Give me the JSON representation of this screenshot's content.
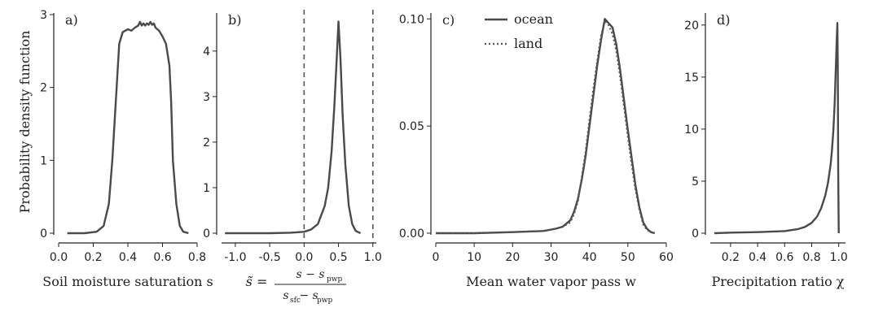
{
  "figure": {
    "ylabel": "Probability density function"
  },
  "chart_data": [
    {
      "type": "line",
      "panel_label": "a)",
      "xlabel": "Soil moisture saturation s",
      "xlim": [
        0.0,
        0.8
      ],
      "ylim": [
        0,
        3
      ],
      "xticks": [
        0.0,
        0.2,
        0.4,
        0.6,
        0.8
      ],
      "xtick_labels": [
        "0.0",
        "0.2",
        "0.4",
        "0.6",
        "0.8"
      ],
      "yticks": [
        0,
        1,
        2,
        3
      ],
      "ytick_labels": [
        "0",
        "1",
        "2",
        "3"
      ],
      "series": [
        {
          "style": "solid",
          "x": [
            0.05,
            0.15,
            0.22,
            0.26,
            0.29,
            0.31,
            0.33,
            0.35,
            0.37,
            0.4,
            0.42,
            0.44,
            0.46,
            0.47,
            0.48,
            0.49,
            0.5,
            0.51,
            0.52,
            0.53,
            0.54,
            0.55,
            0.56,
            0.58,
            0.6,
            0.62,
            0.64,
            0.65,
            0.66,
            0.68,
            0.7,
            0.72,
            0.75
          ],
          "y": [
            0.0,
            0.0,
            0.02,
            0.1,
            0.4,
            1.0,
            1.8,
            2.6,
            2.76,
            2.8,
            2.78,
            2.82,
            2.85,
            2.9,
            2.85,
            2.88,
            2.85,
            2.88,
            2.86,
            2.9,
            2.86,
            2.88,
            2.82,
            2.78,
            2.7,
            2.6,
            2.3,
            1.8,
            1.0,
            0.4,
            0.1,
            0.02,
            0.0
          ]
        }
      ]
    },
    {
      "type": "line",
      "panel_label": "b)",
      "xlabel": "s̃ = (s − s_pwp)/(s_sfc − s_pwp)",
      "xlim": [
        -1.2,
        1.05
      ],
      "ylim": [
        0,
        4.8
      ],
      "xticks": [
        -1.0,
        -0.5,
        0.0,
        0.5,
        1.0
      ],
      "xtick_labels": [
        "-1.0",
        "-0.5",
        "0.0",
        "0.5",
        "1.0"
      ],
      "yticks": [
        0,
        1,
        2,
        3,
        4
      ],
      "ytick_labels": [
        "0",
        "1",
        "2",
        "3",
        "4"
      ],
      "vlines": [
        0.0,
        1.0
      ],
      "series": [
        {
          "style": "solid",
          "x": [
            -1.15,
            -0.8,
            -0.5,
            -0.2,
            0.0,
            0.1,
            0.2,
            0.3,
            0.35,
            0.4,
            0.44,
            0.47,
            0.5,
            0.53,
            0.56,
            0.6,
            0.65,
            0.7,
            0.75,
            0.82
          ],
          "y": [
            0.0,
            0.0,
            0.0,
            0.01,
            0.03,
            0.08,
            0.2,
            0.6,
            1.0,
            1.8,
            2.8,
            3.7,
            4.65,
            3.8,
            2.6,
            1.5,
            0.6,
            0.2,
            0.05,
            0.0
          ]
        }
      ]
    },
    {
      "type": "line",
      "panel_label": "c)",
      "xlabel": "Mean water vapor pass w",
      "xlim": [
        0,
        60
      ],
      "ylim": [
        0,
        0.102
      ],
      "xticks": [
        0,
        10,
        20,
        30,
        40,
        50,
        60
      ],
      "xtick_labels": [
        "0",
        "10",
        "20",
        "30",
        "40",
        "50",
        "60"
      ],
      "yticks": [
        0.0,
        0.05,
        0.1
      ],
      "ytick_labels": [
        "0.00",
        "0.05",
        "0.10"
      ],
      "legend": {
        "placement": "top-left",
        "entries": [
          {
            "label": "ocean",
            "style": "solid"
          },
          {
            "label": "land",
            "style": "dotted"
          }
        ]
      },
      "series": [
        {
          "name": "ocean",
          "style": "solid",
          "x": [
            0,
            10,
            20,
            28,
            31,
            33,
            35,
            36,
            37,
            38,
            39,
            40,
            41,
            42,
            43,
            44,
            45,
            46,
            47,
            48,
            49,
            50,
            51,
            52,
            53,
            54,
            55,
            56,
            57
          ],
          "y": [
            0.0,
            0.0,
            0.0005,
            0.001,
            0.002,
            0.003,
            0.006,
            0.01,
            0.016,
            0.025,
            0.036,
            0.05,
            0.064,
            0.078,
            0.09,
            0.1,
            0.098,
            0.096,
            0.088,
            0.076,
            0.062,
            0.048,
            0.035,
            0.022,
            0.012,
            0.005,
            0.002,
            0.0005,
            0.0
          ]
        },
        {
          "name": "land",
          "style": "dotted",
          "x": [
            0,
            10,
            20,
            28,
            31,
            33,
            35,
            36,
            37,
            38,
            39,
            40,
            41,
            42,
            43,
            44,
            45,
            46,
            47,
            48,
            49,
            50,
            51,
            52,
            53,
            54,
            55,
            56,
            57
          ],
          "y": [
            0.0,
            0.0,
            0.0005,
            0.001,
            0.002,
            0.003,
            0.005,
            0.009,
            0.015,
            0.026,
            0.038,
            0.053,
            0.067,
            0.08,
            0.092,
            0.099,
            0.097,
            0.093,
            0.085,
            0.073,
            0.059,
            0.045,
            0.032,
            0.02,
            0.011,
            0.004,
            0.0015,
            0.0005,
            0.0
          ]
        }
      ]
    },
    {
      "type": "line",
      "panel_label": "d)",
      "xlabel": "Precipitation ratio χ",
      "xlim": [
        0.05,
        1.05
      ],
      "ylim": [
        0,
        21
      ],
      "xticks": [
        0.2,
        0.4,
        0.6,
        0.8,
        1.0
      ],
      "xtick_labels": [
        "0.2",
        "0.4",
        "0.6",
        "0.8",
        "1.0"
      ],
      "yticks": [
        0,
        5,
        10,
        15,
        20
      ],
      "ytick_labels": [
        "0",
        "5",
        "10",
        "15",
        "20"
      ],
      "series": [
        {
          "style": "solid",
          "x": [
            0.08,
            0.2,
            0.4,
            0.6,
            0.7,
            0.75,
            0.8,
            0.84,
            0.87,
            0.9,
            0.92,
            0.94,
            0.95,
            0.96,
            0.97,
            0.975,
            0.98,
            0.985,
            0.99,
            0.993,
            0.996,
            1.0
          ],
          "y": [
            0.0,
            0.05,
            0.1,
            0.2,
            0.4,
            0.6,
            1.0,
            1.6,
            2.4,
            3.6,
            4.8,
            6.6,
            8.0,
            9.8,
            12.5,
            14.5,
            16.5,
            18.5,
            20.2,
            16.0,
            6.0,
            0.0
          ]
        }
      ]
    }
  ]
}
